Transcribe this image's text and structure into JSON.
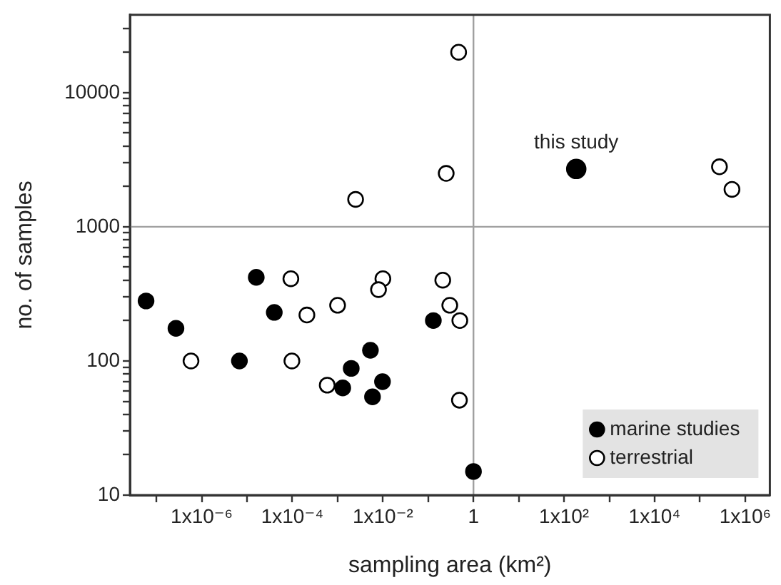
{
  "chart_data": {
    "type": "scatter",
    "xlabel": "sampling area (km²)",
    "ylabel": "no. of samples",
    "log": "xy",
    "grid": false,
    "legend": "bottom right",
    "marker": "circle",
    "xlim": [
      2.6e-08,
      3500000.0
    ],
    "ylim": [
      10,
      38000
    ],
    "xticks": [
      {
        "value": 1e-07,
        "label": null
      },
      {
        "value": 1e-06,
        "label": "1x10⁻⁶"
      },
      {
        "value": 1e-05,
        "label": null
      },
      {
        "value": 0.0001,
        "label": "1x10⁻⁴"
      },
      {
        "value": 0.001,
        "label": null
      },
      {
        "value": 0.01,
        "label": "1x10⁻²"
      },
      {
        "value": 0.1,
        "label": null
      },
      {
        "value": 1,
        "label": "1"
      },
      {
        "value": 10,
        "label": null
      },
      {
        "value": 100,
        "label": "1x10²"
      },
      {
        "value": 1000,
        "label": null
      },
      {
        "value": 10000,
        "label": "1x10⁴"
      },
      {
        "value": 100000,
        "label": null
      },
      {
        "value": 1000000,
        "label": "1x10⁶"
      }
    ],
    "yticks": [
      10,
      {
        "value": 20,
        "label": null
      },
      {
        "value": 30,
        "label": null
      },
      {
        "value": 40,
        "label": null
      },
      {
        "value": 50,
        "label": null
      },
      {
        "value": 60,
        "label": null
      },
      {
        "value": 70,
        "label": null
      },
      {
        "value": 80,
        "label": null
      },
      {
        "value": 90,
        "label": null
      },
      100,
      {
        "value": 200,
        "label": null
      },
      {
        "value": 300,
        "label": null
      },
      {
        "value": 400,
        "label": null
      },
      {
        "value": 500,
        "label": null
      },
      {
        "value": 600,
        "label": null
      },
      {
        "value": 700,
        "label": null
      },
      {
        "value": 800,
        "label": null
      },
      {
        "value": 900,
        "label": null
      },
      1000,
      {
        "value": 2000,
        "label": null
      },
      {
        "value": 3000,
        "label": null
      },
      {
        "value": 4000,
        "label": null
      },
      {
        "value": 5000,
        "label": null
      },
      {
        "value": 6000,
        "label": null
      },
      {
        "value": 7000,
        "label": null
      },
      {
        "value": 8000,
        "label": null
      },
      {
        "value": 9000,
        "label": null
      },
      10000,
      {
        "value": 20000,
        "label": null
      },
      {
        "value": 30000,
        "label": null
      }
    ],
    "ref_lines": [
      {
        "axis": "x",
        "value": 1,
        "color": "#a0a0a0"
      },
      {
        "axis": "y",
        "value": 1000,
        "color": "#a0a0a0"
      }
    ],
    "annotations": [
      {
        "text": "this study",
        "x": 186,
        "y": 2700
      }
    ],
    "series": [
      {
        "name": "marine studies",
        "color": "#000000",
        "x": [
          5.9e-08,
          1.6e-05,
          4e-05,
          0.13,
          2.7e-07,
          6.8e-06,
          0.0053,
          0.002,
          0.0013,
          0.0098,
          0.0059,
          1
        ],
        "values": [
          280,
          420,
          230,
          200,
          175,
          100,
          120,
          88,
          63,
          70,
          54,
          15
        ]
      },
      {
        "name": "terrestrial",
        "color": "#ffffff",
        "x": [
          0.47,
          0.25,
          0.0025,
          9.3e-05,
          0.01,
          0.008,
          0.21,
          0.3,
          0.5,
          0.00021,
          0.001,
          5.8e-07,
          9.8e-05,
          0.00059,
          0.49,
          270000.0,
          510000.0
        ],
        "values": [
          20000,
          2500,
          1600,
          410,
          410,
          340,
          400,
          260,
          200,
          220,
          260,
          100,
          100,
          66,
          51,
          2800,
          1900
        ]
      },
      {
        "color": "#000000",
        "x": [
          186
        ],
        "values": [
          2700
        ]
      }
    ]
  }
}
